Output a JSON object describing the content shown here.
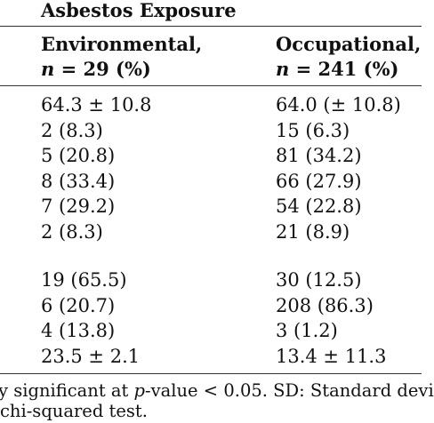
{
  "table": {
    "group_title": "Asbestos Exposure",
    "columns": [
      {
        "line1": "Environmental,",
        "n_label": "n",
        "n_rest": " = 29 (%)"
      },
      {
        "line1": "Occupational,",
        "n_label": "n",
        "n_rest": " = 241 (%)"
      }
    ],
    "block1": [
      [
        "64.3 ± 10.8",
        "64.0 (± 10.8)"
      ],
      [
        "2 (8.3)",
        "15 (6.3)"
      ],
      [
        "5 (20.8)",
        "81 (34.2)"
      ],
      [
        "8 (33.4)",
        "66 (27.9)"
      ],
      [
        "7 (29.2)",
        "54 (22.8)"
      ],
      [
        "2 (8.3)",
        "21 (8.9)"
      ]
    ],
    "block2": [
      [
        "19 (65.5)",
        "30 (12.5)"
      ],
      [
        "6 (20.7)",
        "208 (86.3)"
      ],
      [
        "4 (13.8)",
        "3 (1.2)"
      ],
      [
        "23.5 ± 2.1",
        "13.4 ± 11.3"
      ]
    ]
  },
  "footnote": {
    "line1_a": "y significant at ",
    "line1_p": "p",
    "line1_b": "-value < 0.05.  SD: Standard devi",
    "line2": "chi-squared test."
  }
}
